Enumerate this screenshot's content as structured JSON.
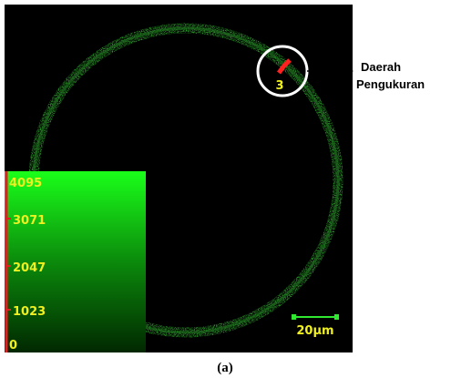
{
  "image": {
    "colorbar": {
      "labels": [
        "4095",
        "3071",
        "2047",
        "1023",
        "0"
      ]
    },
    "region_number": "3",
    "scale_bar": "20μm",
    "annotation": {
      "line1": "Daerah",
      "line2": "Pengukuran"
    },
    "caption": "(a)"
  }
}
